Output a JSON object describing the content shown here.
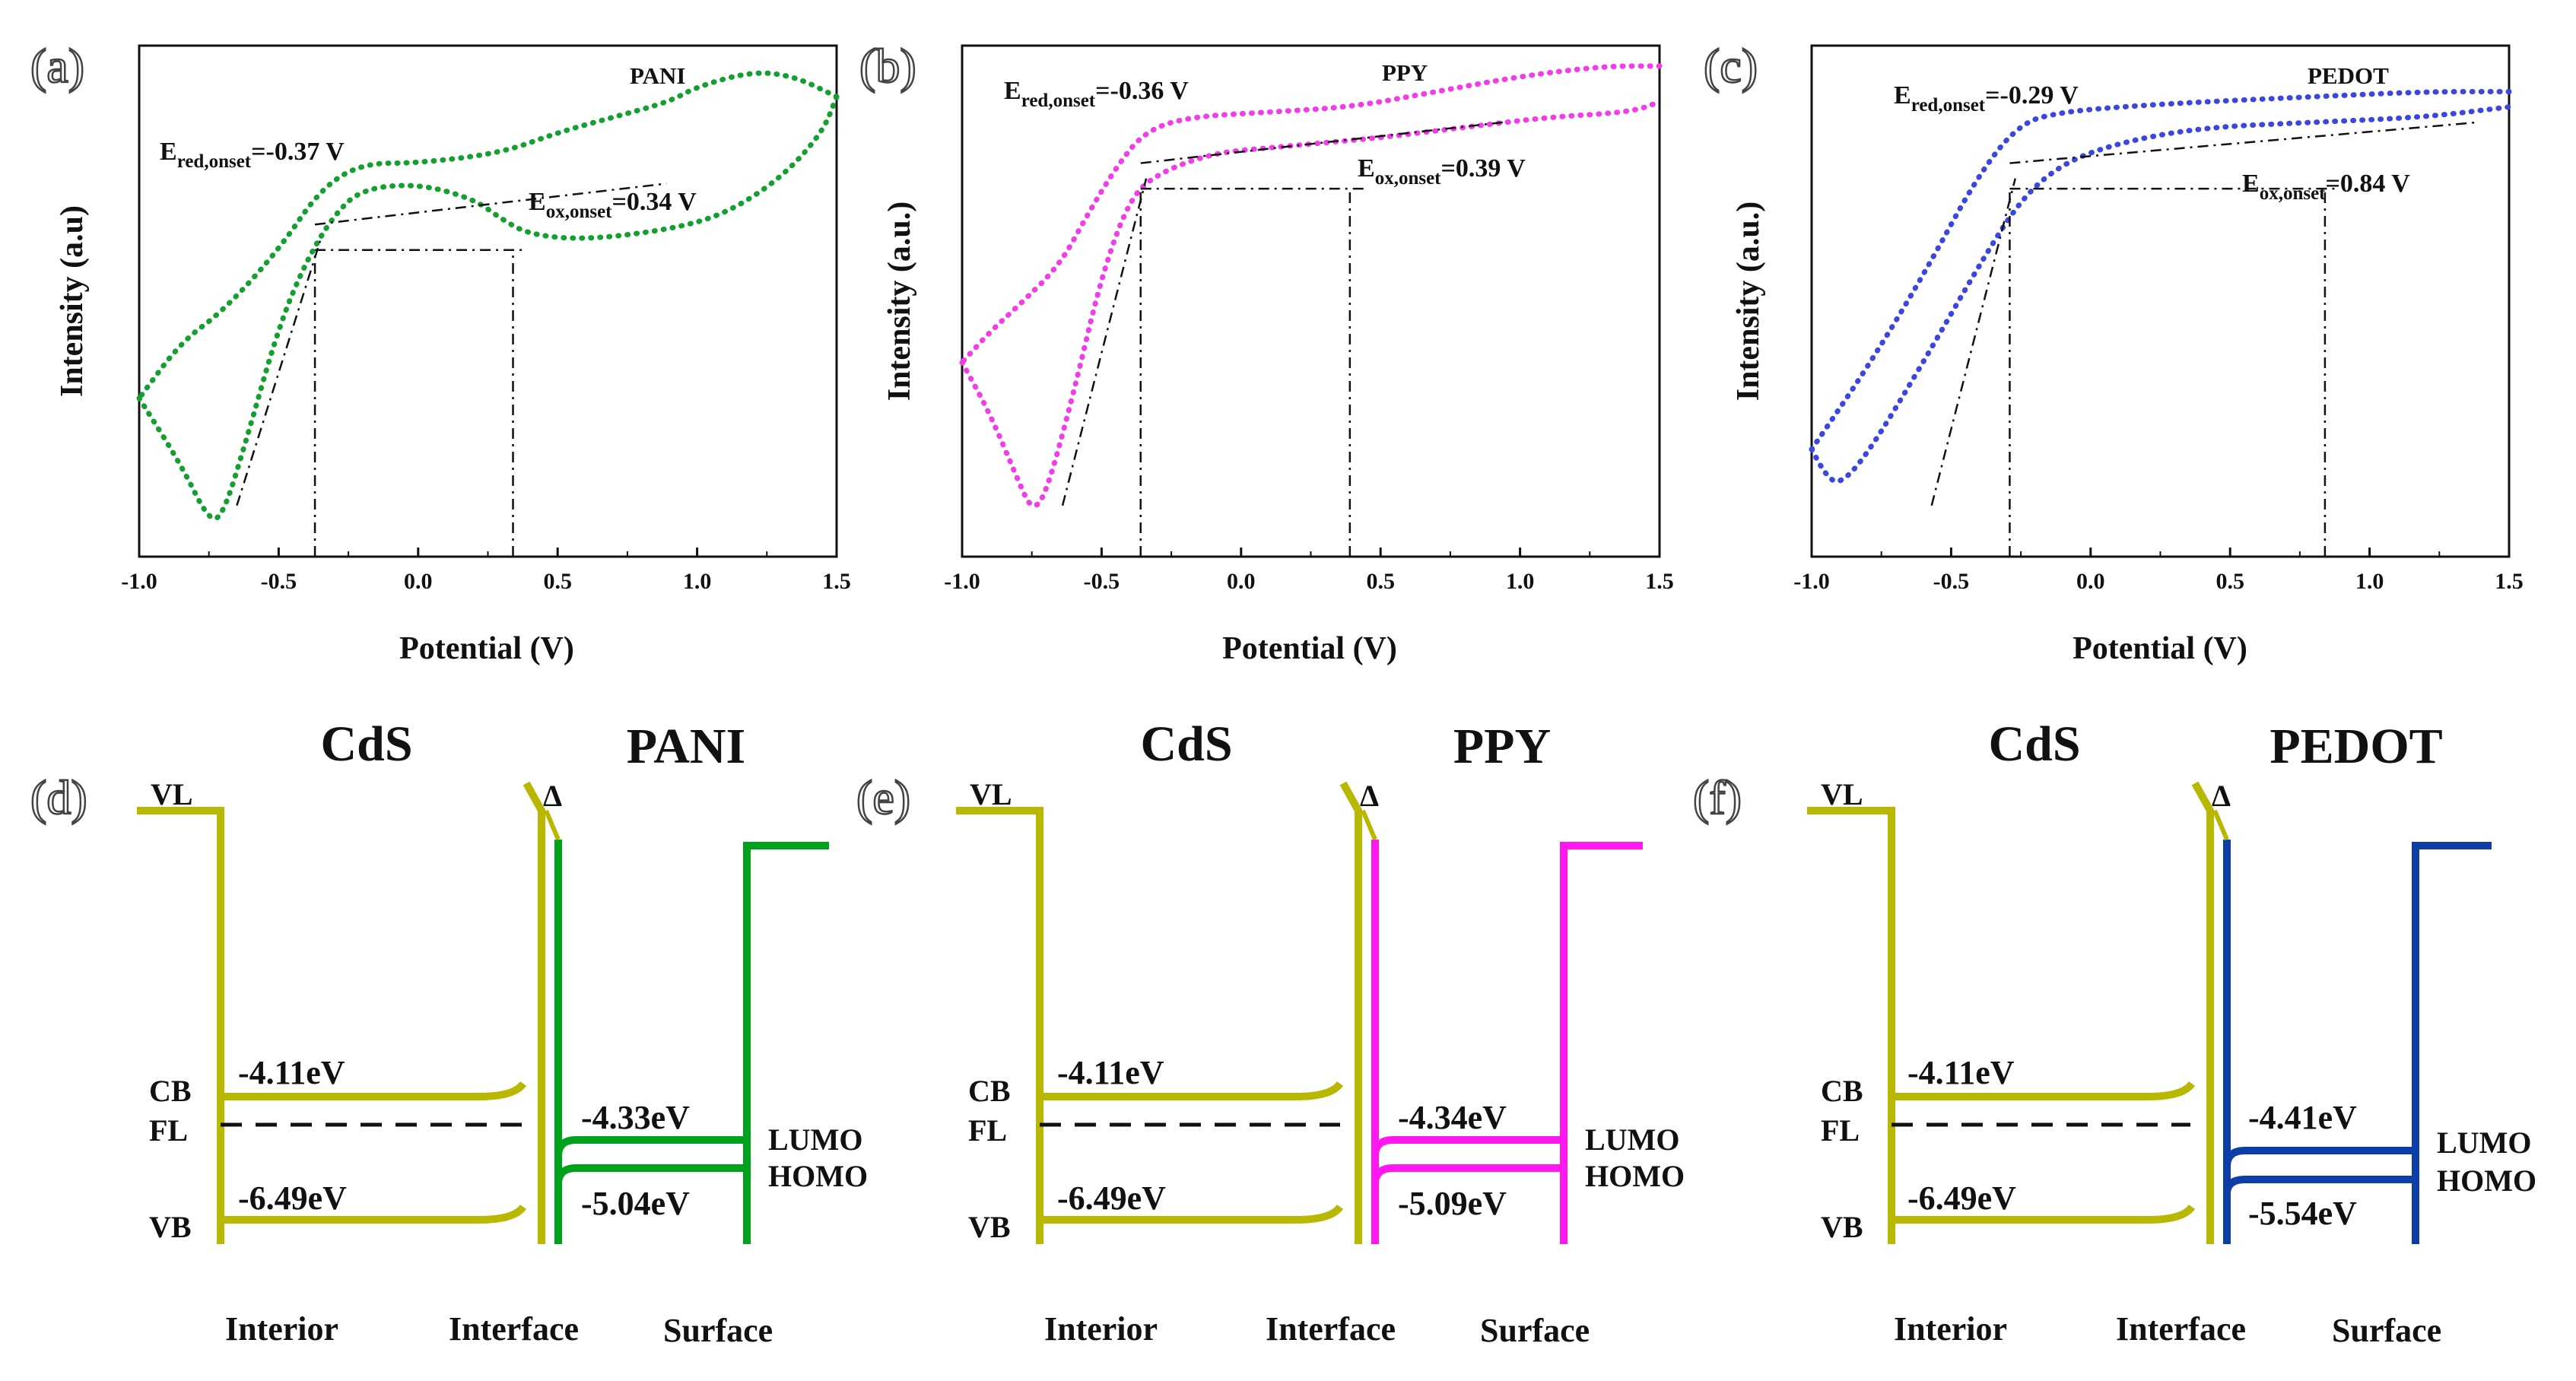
{
  "chart_data": [
    {
      "panel": "(a)",
      "type": "line",
      "polymer": "PANI",
      "color": "#13a030",
      "xlabel": "Potential (V)",
      "ylabel": "Intensity (a.u)",
      "xlim": [
        -1.0,
        1.5
      ],
      "ylim": [
        0,
        1
      ],
      "xticks": [
        "-1.0",
        "-0.5",
        "0.0",
        "0.5",
        "1.0",
        "1.5"
      ],
      "onset_red": {
        "prefix": "E",
        "sub": "red,onset",
        "value": "=-0.37 V",
        "x": -0.37
      },
      "onset_ox": {
        "prefix": "E",
        "sub": "ox,onset",
        "value": "=0.34 V",
        "x": 0.34
      },
      "series": [
        {
          "name": "forward",
          "x": [
            -1.0,
            -0.85,
            -0.75,
            -0.7,
            -0.62,
            -0.5,
            -0.4,
            -0.3,
            -0.2,
            0,
            0.2,
            0.3,
            0.4,
            0.6,
            0.9,
            1.1,
            1.3,
            1.45,
            1.5
          ],
          "y": [
            0.31,
            0.18,
            0.07,
            0.08,
            0.22,
            0.45,
            0.58,
            0.67,
            0.72,
            0.73,
            0.7,
            0.66,
            0.63,
            0.62,
            0.64,
            0.67,
            0.74,
            0.83,
            0.9
          ]
        },
        {
          "name": "reverse",
          "x": [
            1.5,
            1.35,
            1.2,
            1.0,
            0.9,
            0.7,
            0.5,
            0.3,
            0.0,
            -0.2,
            -0.35,
            -0.5,
            -0.7,
            -0.85,
            -1.0
          ],
          "y": [
            0.9,
            0.94,
            0.95,
            0.92,
            0.89,
            0.86,
            0.83,
            0.79,
            0.77,
            0.77,
            0.72,
            0.6,
            0.48,
            0.42,
            0.31
          ]
        }
      ]
    },
    {
      "panel": "(b)",
      "type": "line",
      "polymer": "PPY",
      "color": "#f23ce8",
      "xlabel": "Potential (V)",
      "ylabel": "Intensity (a.u.)",
      "xlim": [
        -1.0,
        1.5
      ],
      "ylim": [
        0,
        1
      ],
      "xticks": [
        "-1.0",
        "-0.5",
        "0.0",
        "0.5",
        "1.0",
        "1.5"
      ],
      "onset_red": {
        "prefix": "E",
        "sub": "red,onset",
        "value": "=-0.36 V",
        "x": -0.36
      },
      "onset_ox": {
        "prefix": "E",
        "sub": "ox,onset",
        "value": "=0.39 V",
        "x": 0.39
      },
      "series": [
        {
          "name": "forward",
          "x": [
            -1.0,
            -0.9,
            -0.8,
            -0.75,
            -0.7,
            -0.6,
            -0.5,
            -0.4,
            -0.3,
            -0.1,
            0.1,
            0.3,
            0.5,
            0.8,
            1.1,
            1.4,
            1.5
          ],
          "y": [
            0.38,
            0.28,
            0.15,
            0.09,
            0.12,
            0.32,
            0.55,
            0.7,
            0.75,
            0.79,
            0.8,
            0.81,
            0.82,
            0.84,
            0.86,
            0.87,
            0.89
          ]
        },
        {
          "name": "reverse",
          "x": [
            1.5,
            1.3,
            1.0,
            0.7,
            0.4,
            0.1,
            -0.2,
            -0.35,
            -0.45,
            -0.55,
            -0.65,
            -0.8,
            -0.9,
            -1.0
          ],
          "y": [
            0.96,
            0.96,
            0.94,
            0.91,
            0.88,
            0.87,
            0.86,
            0.83,
            0.76,
            0.67,
            0.57,
            0.49,
            0.44,
            0.38
          ]
        }
      ]
    },
    {
      "panel": "(c)",
      "type": "line",
      "polymer": "PEDOT",
      "color": "#3b46e0",
      "xlabel": "Potential (V)",
      "ylabel": "Intensity (a.u.)",
      "xlim": [
        -1.0,
        1.5
      ],
      "ylim": [
        0,
        1
      ],
      "xticks": [
        "-1.0",
        "-0.5",
        "0.0",
        "0.5",
        "1.0",
        "1.5"
      ],
      "onset_red": {
        "prefix": "E",
        "sub": "red,onset",
        "value": "=-0.29 V",
        "x": -0.29
      },
      "onset_ox": {
        "prefix": "E",
        "sub": "ox,onset",
        "value": "=0.84 V",
        "x": 0.84
      },
      "series": [
        {
          "name": "forward",
          "x": [
            -1.0,
            -0.95,
            -0.9,
            -0.8,
            -0.6,
            -0.4,
            -0.25,
            -0.1,
            0.1,
            0.4,
            0.8,
            1.2,
            1.5
          ],
          "y": [
            0.21,
            0.16,
            0.14,
            0.2,
            0.38,
            0.57,
            0.7,
            0.77,
            0.81,
            0.84,
            0.85,
            0.86,
            0.88
          ]
        },
        {
          "name": "reverse",
          "x": [
            1.5,
            1.2,
            0.8,
            0.4,
            0.1,
            -0.1,
            -0.25,
            -0.4,
            -0.6,
            -0.8,
            -1.0
          ],
          "y": [
            0.91,
            0.91,
            0.9,
            0.89,
            0.88,
            0.87,
            0.85,
            0.75,
            0.55,
            0.37,
            0.21
          ]
        }
      ]
    }
  ],
  "band_diagrams": [
    {
      "panel": "(d)",
      "left_title": "CdS",
      "right_title": "PANI",
      "color": "#00a11c",
      "cb": "-4.11eV",
      "vb": "-6.49eV",
      "lumo": "-4.33eV",
      "homo": "-5.04eV"
    },
    {
      "panel": "(e)",
      "left_title": "CdS",
      "right_title": "PPY",
      "color": "#ff17f0",
      "cb": "-4.11eV",
      "vb": "-6.49eV",
      "lumo": "-4.34eV",
      "homo": "-5.09eV"
    },
    {
      "panel": "(f)",
      "left_title": "CdS",
      "right_title": "PEDOT",
      "color": "#0c3ea5",
      "cb": "-4.11eV",
      "vb": "-6.49eV",
      "lumo": "-4.41eV",
      "homo": "-5.54eV"
    }
  ],
  "band_labels": {
    "vl": "VL",
    "cb": "CB",
    "fl": "FL",
    "vb": "VB",
    "delta": "Δ",
    "lumo": "LUMO",
    "homo": "HOMO",
    "homo_truncated": "HOMO",
    "interior": "Interior",
    "interface": "Interface",
    "surface": "Surface"
  },
  "colors": {
    "cds": "#b8b800",
    "axis": "#111111"
  }
}
